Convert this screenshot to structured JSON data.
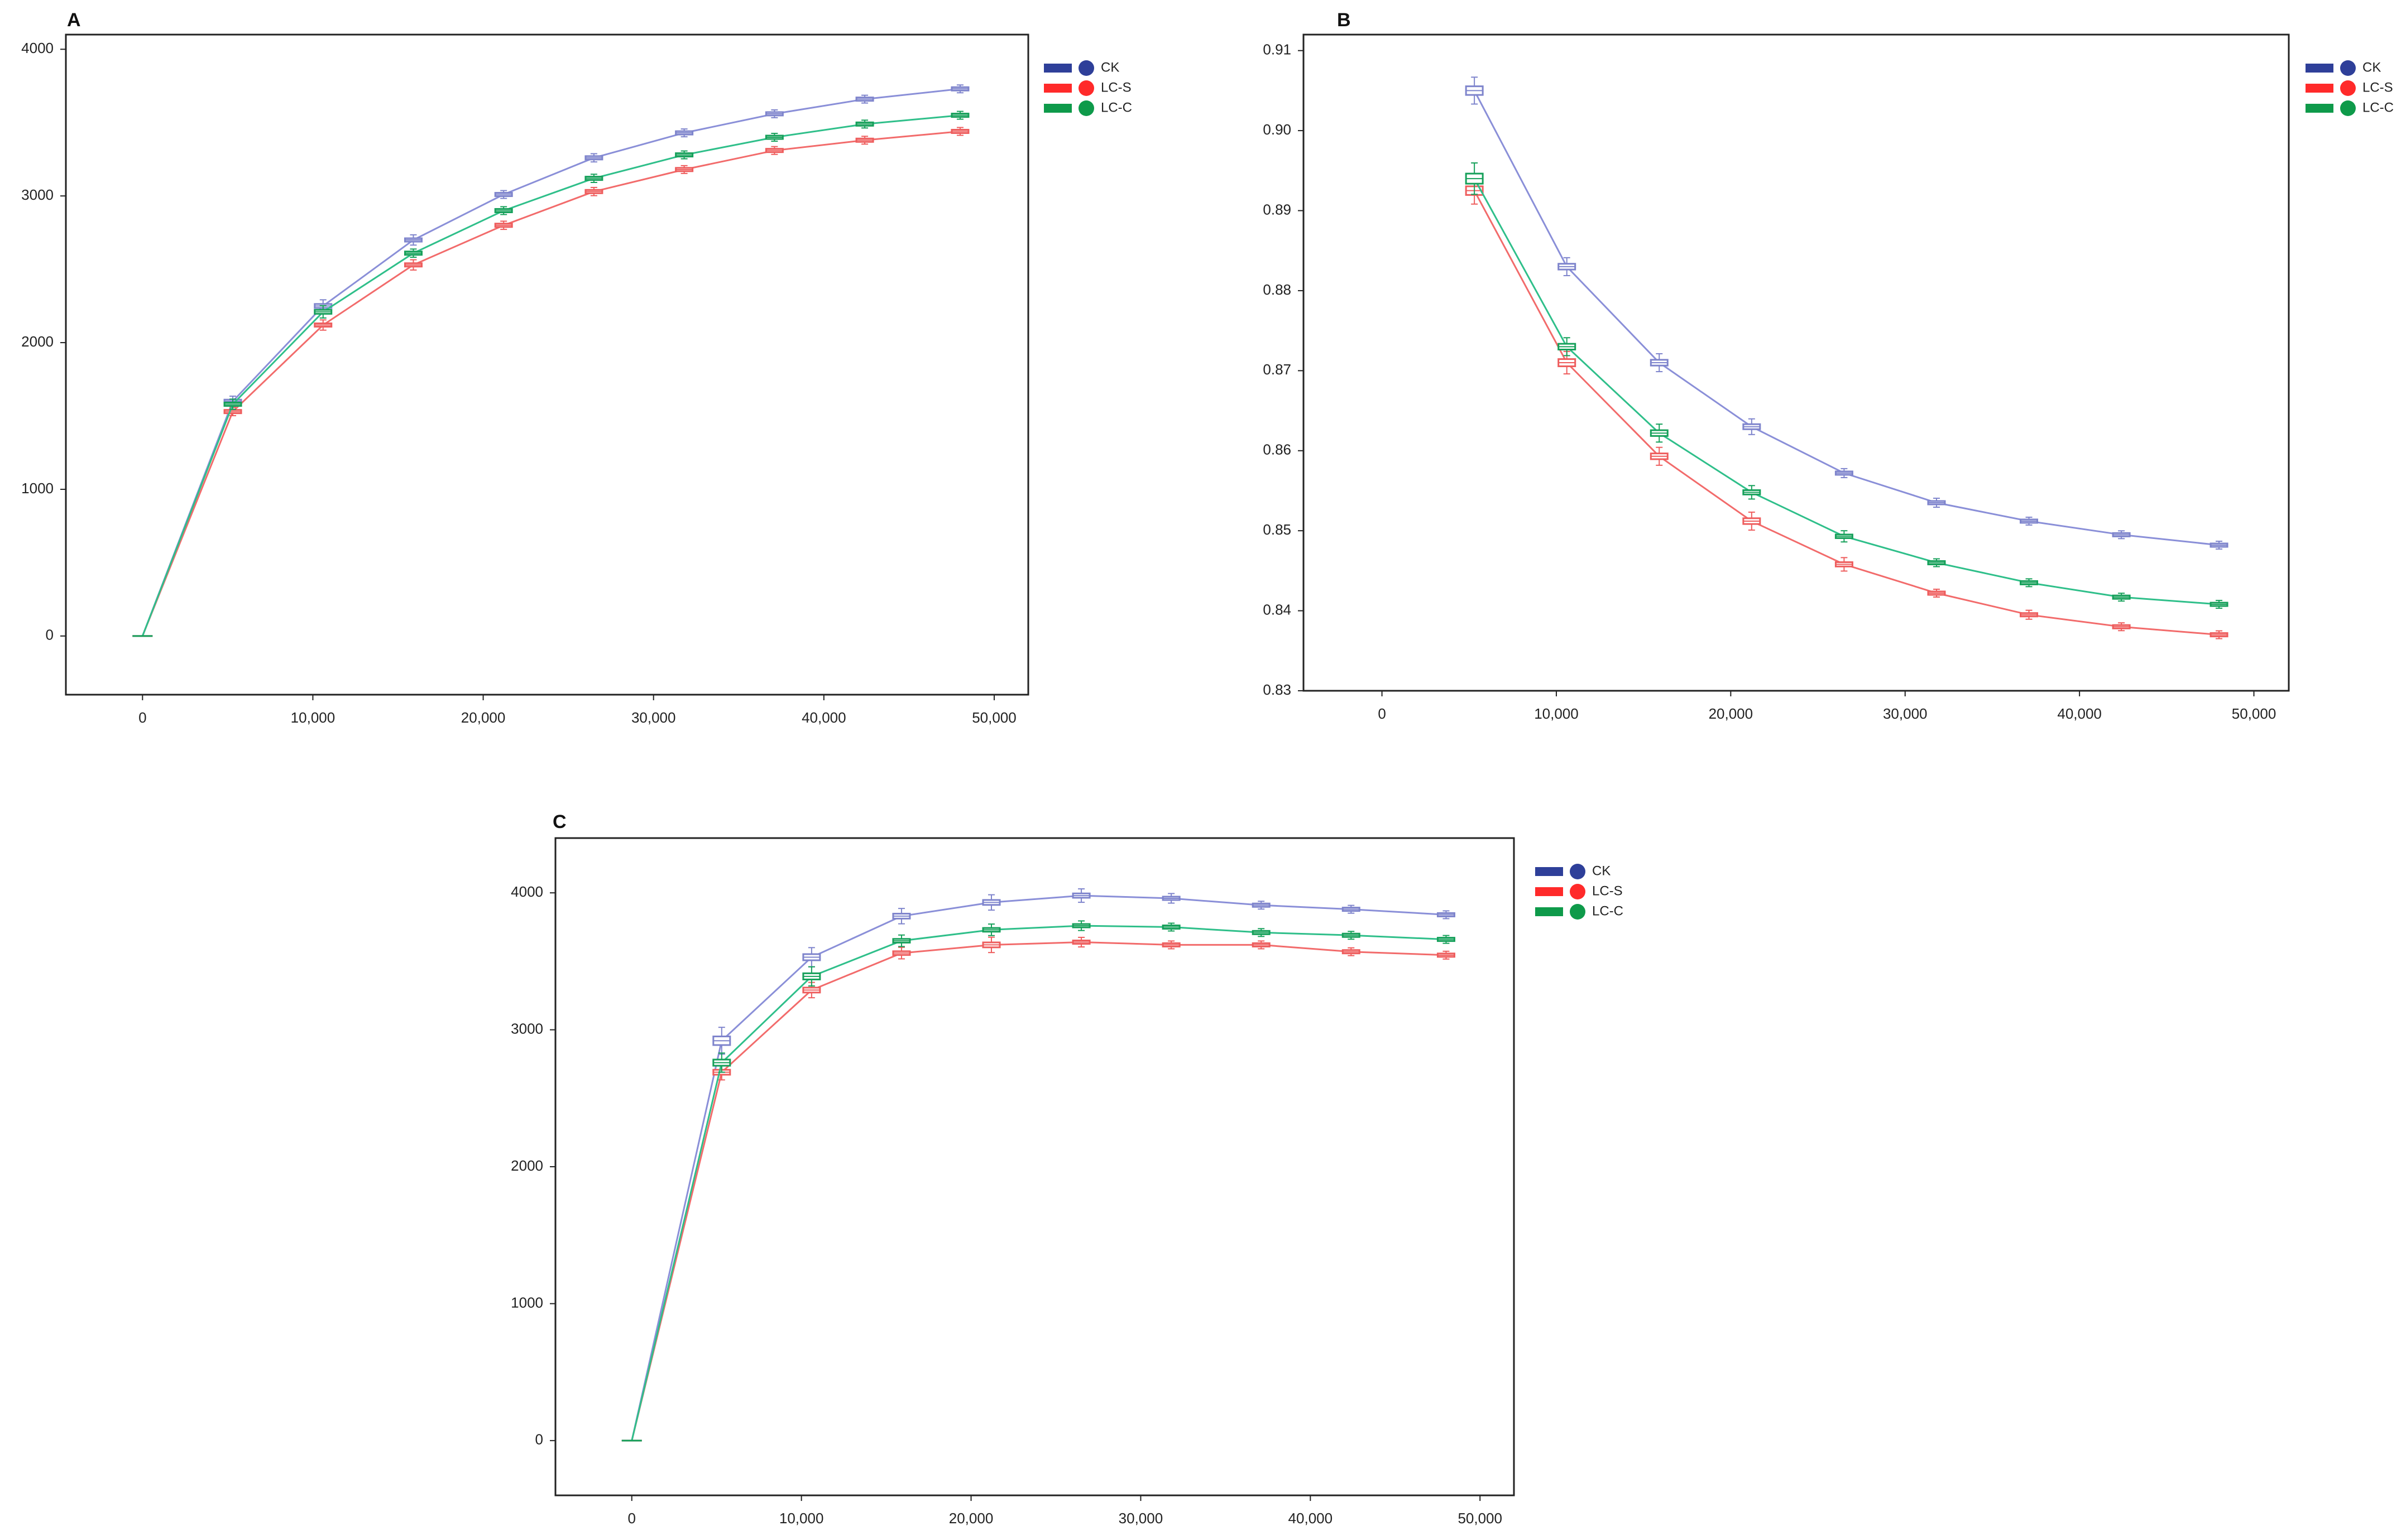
{
  "legend": {
    "entries": [
      {
        "name": "CK",
        "color": "#2e3f99",
        "line_color": "#8a8fd8",
        "box_color": "#7e84cc"
      },
      {
        "name": "LC-S",
        "color": "#ff2a2a",
        "line_color": "#f26b6b",
        "box_color": "#ee5d5d"
      },
      {
        "name": "LC-C",
        "color": "#0e9a4a",
        "line_color": "#2fbf8a",
        "box_color": "#16a05a"
      }
    ]
  },
  "chart_data": [
    {
      "panel": "A",
      "type": "line",
      "title": "",
      "xlabel": "",
      "ylabel": "",
      "xlim": [
        -4500,
        52000
      ],
      "ylim": [
        -400,
        4100
      ],
      "x_ticks": [
        0,
        10000,
        20000,
        30000,
        40000,
        50000
      ],
      "x_tick_labels": [
        "0",
        "10,000",
        "20,000",
        "30,000",
        "40,000",
        "50,000"
      ],
      "y_ticks": [
        0,
        1000,
        2000,
        3000,
        4000
      ],
      "y_tick_labels": [
        "0",
        "1000",
        "2000",
        "3000",
        "4000"
      ],
      "x": [
        0,
        5300,
        10600,
        15900,
        21200,
        26500,
        31800,
        37100,
        42400,
        48000
      ],
      "series": [
        {
          "name": "CK",
          "values": [
            0,
            1600,
            2250,
            2700,
            3010,
            3260,
            3430,
            3560,
            3660,
            3730
          ],
          "spread": [
            0,
            25,
            30,
            25,
            15,
            20,
            15,
            10,
            8,
            5
          ]
        },
        {
          "name": "LC-S",
          "values": [
            0,
            1530,
            2120,
            2530,
            2800,
            3030,
            3180,
            3310,
            3380,
            3440
          ],
          "spread": [
            0,
            20,
            25,
            25,
            20,
            20,
            15,
            10,
            8,
            5
          ]
        },
        {
          "name": "LC-C",
          "values": [
            0,
            1580,
            2210,
            2610,
            2900,
            3120,
            3280,
            3400,
            3490,
            3550
          ],
          "spread": [
            0,
            25,
            30,
            20,
            15,
            20,
            15,
            10,
            8,
            5
          ]
        }
      ]
    },
    {
      "panel": "B",
      "type": "line",
      "title": "",
      "xlabel": "",
      "ylabel": "",
      "xlim": [
        -4500,
        52000
      ],
      "ylim": [
        0.83,
        0.912
      ],
      "x_ticks": [
        0,
        10000,
        20000,
        30000,
        40000,
        50000
      ],
      "x_tick_labels": [
        "0",
        "10,000",
        "20,000",
        "30,000",
        "40,000",
        "50,000"
      ],
      "y_ticks": [
        0.83,
        0.84,
        0.85,
        0.86,
        0.87,
        0.88,
        0.89,
        0.9,
        0.91
      ],
      "y_tick_labels": [
        "0.83",
        "0.84",
        "0.85",
        "0.86",
        "0.87",
        "0.88",
        "0.89",
        "0.90",
        "0.91"
      ],
      "x": [
        5300,
        10600,
        15900,
        21200,
        26500,
        31800,
        37100,
        42400,
        48000
      ],
      "series": [
        {
          "name": "CK",
          "values": [
            0.905,
            0.883,
            0.871,
            0.863,
            0.8572,
            0.8535,
            0.8512,
            0.8495,
            0.8482
          ],
          "spread": [
            0.0012,
            0.0008,
            0.0008,
            0.0007,
            0.0004,
            0.0004,
            0.0003,
            0.0002,
            0.0002
          ]
        },
        {
          "name": "LC-S",
          "values": [
            0.8925,
            0.871,
            0.8593,
            0.8512,
            0.8458,
            0.8422,
            0.8395,
            0.838,
            0.837
          ],
          "spread": [
            0.0012,
            0.001,
            0.0008,
            0.0008,
            0.0006,
            0.0003,
            0.0004,
            0.0003,
            0.0002
          ]
        },
        {
          "name": "LC-C",
          "values": [
            0.894,
            0.873,
            0.8622,
            0.8548,
            0.8493,
            0.846,
            0.8435,
            0.8417,
            0.8408
          ],
          "spread": [
            0.0014,
            0.0008,
            0.0008,
            0.0006,
            0.0005,
            0.0003,
            0.0003,
            0.0002,
            0.0002
          ]
        }
      ]
    },
    {
      "panel": "C",
      "type": "line",
      "title": "",
      "xlabel": "",
      "ylabel": "",
      "xlim": [
        -4500,
        52000
      ],
      "ylim": [
        -400,
        4400
      ],
      "x_ticks": [
        0,
        10000,
        20000,
        30000,
        40000,
        50000
      ],
      "x_tick_labels": [
        "0",
        "10,000",
        "20,000",
        "30,000",
        "40,000",
        "50,000"
      ],
      "y_ticks": [
        0,
        1000,
        2000,
        3000,
        4000
      ],
      "y_tick_labels": [
        "0",
        "1000",
        "2000",
        "3000",
        "4000"
      ],
      "x": [
        0,
        5300,
        10600,
        15900,
        21200,
        26500,
        31800,
        37100,
        42400,
        48000
      ],
      "series": [
        {
          "name": "CK",
          "values": [
            0,
            2920,
            3530,
            3830,
            3930,
            3980,
            3960,
            3910,
            3880,
            3840
          ],
          "spread": [
            0,
            70,
            50,
            40,
            40,
            35,
            25,
            20,
            15,
            5
          ]
        },
        {
          "name": "LC-S",
          "values": [
            0,
            2690,
            3290,
            3560,
            3620,
            3640,
            3620,
            3620,
            3570,
            3545
          ],
          "spread": [
            0,
            40,
            40,
            30,
            40,
            25,
            15,
            15,
            10,
            5
          ]
        },
        {
          "name": "LC-C",
          "values": [
            0,
            2760,
            3390,
            3650,
            3730,
            3760,
            3750,
            3710,
            3690,
            3660
          ],
          "spread": [
            0,
            50,
            50,
            30,
            30,
            25,
            15,
            20,
            10,
            5
          ]
        }
      ]
    }
  ]
}
